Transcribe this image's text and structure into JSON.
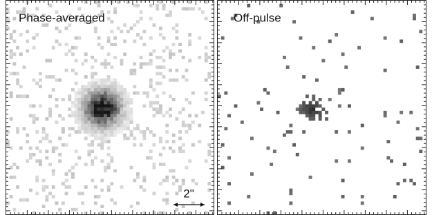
{
  "panels": [
    {
      "label": "Phase-averaged"
    },
    {
      "label": "Off-pulse"
    }
  ],
  "scale_bar": {
    "label": "2\""
  }
}
